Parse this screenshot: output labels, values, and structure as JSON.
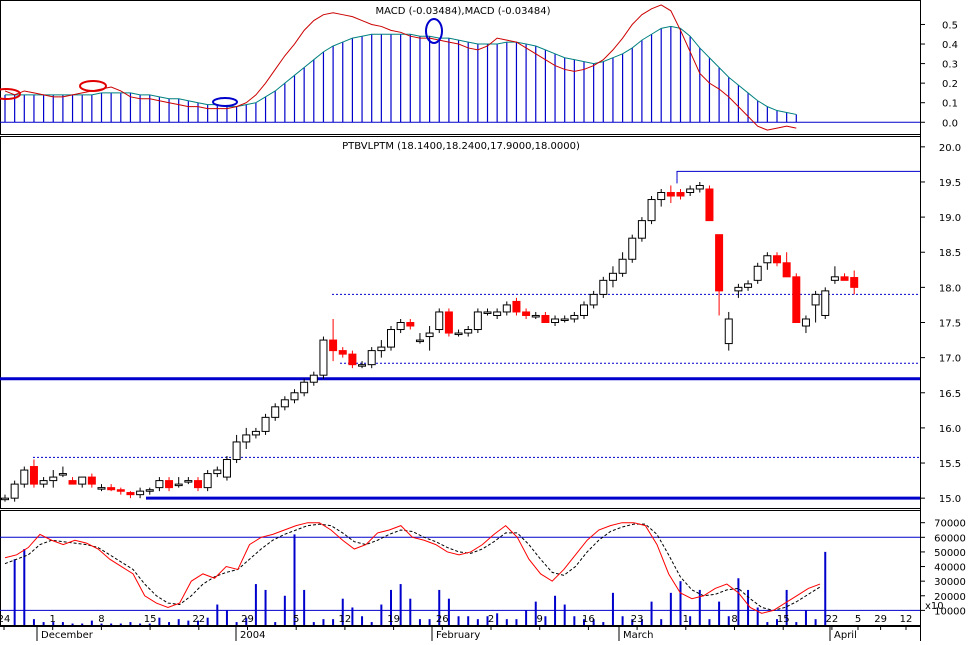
{
  "chart_data": [
    {
      "type": "line",
      "panel": "macd",
      "title": "MACD (-0.03484),MACD (-0.03484)",
      "ylim": [
        -0.06,
        0.62
      ],
      "y_ticks": [
        "0.5",
        "0.4",
        "0.3",
        "0.2",
        "0.1",
        "0.0"
      ],
      "y_tick_values": [
        0.5,
        0.4,
        0.3,
        0.2,
        0.1,
        0.0
      ],
      "colors": {
        "macd": "#cc0000",
        "signal": "#008080",
        "histogram": "#0000cc"
      },
      "macd_line": [
        0.16,
        0.14,
        0.16,
        0.15,
        0.14,
        0.13,
        0.13,
        0.14,
        0.15,
        0.16,
        0.17,
        0.18,
        0.16,
        0.13,
        0.12,
        0.12,
        0.11,
        0.1,
        0.09,
        0.08,
        0.08,
        0.07,
        0.07,
        0.07,
        0.08,
        0.1,
        0.14,
        0.2,
        0.27,
        0.34,
        0.4,
        0.47,
        0.52,
        0.55,
        0.56,
        0.55,
        0.54,
        0.52,
        0.5,
        0.49,
        0.47,
        0.46,
        0.44,
        0.43,
        0.43,
        0.42,
        0.41,
        0.4,
        0.38,
        0.37,
        0.39,
        0.43,
        0.42,
        0.41,
        0.38,
        0.35,
        0.32,
        0.29,
        0.27,
        0.26,
        0.27,
        0.29,
        0.32,
        0.37,
        0.43,
        0.5,
        0.55,
        0.58,
        0.6,
        0.57,
        0.47,
        0.36,
        0.25,
        0.2,
        0.17,
        0.13,
        0.08,
        0.03,
        -0.02,
        -0.04,
        -0.03,
        -0.02,
        -0.03
      ],
      "signal_line": [
        0.14,
        0.14,
        0.14,
        0.14,
        0.14,
        0.14,
        0.14,
        0.14,
        0.14,
        0.14,
        0.15,
        0.15,
        0.15,
        0.15,
        0.14,
        0.14,
        0.13,
        0.12,
        0.12,
        0.11,
        0.1,
        0.09,
        0.09,
        0.08,
        0.08,
        0.09,
        0.1,
        0.13,
        0.16,
        0.2,
        0.24,
        0.28,
        0.32,
        0.36,
        0.39,
        0.41,
        0.43,
        0.44,
        0.45,
        0.45,
        0.45,
        0.45,
        0.45,
        0.44,
        0.44,
        0.43,
        0.43,
        0.42,
        0.41,
        0.4,
        0.4,
        0.4,
        0.41,
        0.41,
        0.4,
        0.39,
        0.37,
        0.35,
        0.33,
        0.32,
        0.31,
        0.3,
        0.31,
        0.33,
        0.35,
        0.38,
        0.42,
        0.45,
        0.48,
        0.49,
        0.48,
        0.44,
        0.38,
        0.33,
        0.28,
        0.23,
        0.19,
        0.15,
        0.11,
        0.08,
        0.06,
        0.05,
        0.04
      ]
    },
    {
      "type": "candlestick",
      "panel": "price",
      "title": "PTBVLPTM (18.1400,18.2400,17.9000,18.0000)",
      "ylim": [
        14.86,
        20.14
      ],
      "y_ticks": [
        "20.0",
        "19.5",
        "19.0",
        "18.5",
        "18.0",
        "17.5",
        "17.0",
        "16.5",
        "16.0",
        "15.5",
        "15.0"
      ],
      "y_tick_values": [
        20.0,
        19.5,
        19.0,
        18.5,
        18.0,
        17.5,
        17.0,
        16.5,
        16.0,
        15.5,
        15.0
      ],
      "up_color": "#ffffff",
      "down_color": "#ff0000",
      "candles": [
        [
          15.0,
          15.05,
          14.95,
          15.0
        ],
        [
          15.0,
          15.25,
          14.95,
          15.2
        ],
        [
          15.2,
          15.45,
          15.15,
          15.4
        ],
        [
          15.45,
          15.55,
          15.15,
          15.2
        ],
        [
          15.2,
          15.3,
          15.15,
          15.25
        ],
        [
          15.25,
          15.4,
          15.15,
          15.3
        ],
        [
          15.35,
          15.45,
          15.3,
          15.35
        ],
        [
          15.25,
          15.3,
          15.2,
          15.2
        ],
        [
          15.2,
          15.3,
          15.15,
          15.3
        ],
        [
          15.3,
          15.35,
          15.15,
          15.2
        ],
        [
          15.15,
          15.2,
          15.1,
          15.15
        ],
        [
          15.15,
          15.2,
          15.1,
          15.12
        ],
        [
          15.12,
          15.15,
          15.05,
          15.1
        ],
        [
          15.08,
          15.1,
          15.0,
          15.05
        ],
        [
          15.05,
          15.15,
          15.0,
          15.1
        ],
        [
          15.1,
          15.15,
          15.05,
          15.12
        ],
        [
          15.15,
          15.3,
          15.1,
          15.25
        ],
        [
          15.25,
          15.3,
          15.1,
          15.15
        ],
        [
          15.2,
          15.3,
          15.15,
          15.2
        ],
        [
          15.25,
          15.3,
          15.2,
          15.25
        ],
        [
          15.25,
          15.3,
          15.1,
          15.15
        ],
        [
          15.15,
          15.4,
          15.1,
          15.35
        ],
        [
          15.35,
          15.45,
          15.3,
          15.4
        ],
        [
          15.3,
          15.6,
          15.25,
          15.55
        ],
        [
          15.55,
          15.9,
          15.5,
          15.8
        ],
        [
          15.8,
          16.0,
          15.7,
          15.9
        ],
        [
          15.9,
          16.0,
          15.85,
          15.95
        ],
        [
          15.95,
          16.2,
          15.9,
          16.15
        ],
        [
          16.15,
          16.35,
          16.1,
          16.3
        ],
        [
          16.3,
          16.45,
          16.25,
          16.4
        ],
        [
          16.4,
          16.55,
          16.35,
          16.5
        ],
        [
          16.5,
          16.7,
          16.45,
          16.65
        ],
        [
          16.65,
          16.8,
          16.6,
          16.75
        ],
        [
          16.75,
          17.3,
          16.7,
          17.25
        ],
        [
          17.25,
          17.55,
          16.95,
          17.1
        ],
        [
          17.1,
          17.15,
          17.0,
          17.05
        ],
        [
          17.05,
          17.1,
          16.85,
          16.9
        ],
        [
          16.9,
          16.95,
          16.85,
          16.9
        ],
        [
          16.9,
          17.15,
          16.85,
          17.1
        ],
        [
          17.1,
          17.25,
          17.0,
          17.15
        ],
        [
          17.15,
          17.45,
          17.1,
          17.4
        ],
        [
          17.4,
          17.55,
          17.35,
          17.5
        ],
        [
          17.5,
          17.55,
          17.4,
          17.45
        ],
        [
          17.25,
          17.35,
          17.2,
          17.25
        ],
        [
          17.3,
          17.45,
          17.1,
          17.35
        ],
        [
          17.4,
          17.7,
          17.35,
          17.65
        ],
        [
          17.65,
          17.7,
          17.3,
          17.35
        ],
        [
          17.35,
          17.4,
          17.3,
          17.35
        ],
        [
          17.35,
          17.45,
          17.3,
          17.4
        ],
        [
          17.4,
          17.7,
          17.35,
          17.65
        ],
        [
          17.65,
          17.7,
          17.6,
          17.65
        ],
        [
          17.6,
          17.7,
          17.55,
          17.65
        ],
        [
          17.65,
          17.8,
          17.6,
          17.75
        ],
        [
          17.8,
          17.85,
          17.6,
          17.65
        ],
        [
          17.65,
          17.7,
          17.55,
          17.6
        ],
        [
          17.6,
          17.65,
          17.55,
          17.6
        ],
        [
          17.6,
          17.65,
          17.5,
          17.5
        ],
        [
          17.5,
          17.6,
          17.45,
          17.55
        ],
        [
          17.55,
          17.6,
          17.5,
          17.55
        ],
        [
          17.55,
          17.65,
          17.5,
          17.6
        ],
        [
          17.6,
          17.8,
          17.55,
          17.75
        ],
        [
          17.75,
          17.95,
          17.7,
          17.9
        ],
        [
          17.9,
          18.15,
          17.85,
          18.1
        ],
        [
          18.1,
          18.3,
          18.0,
          18.2
        ],
        [
          18.2,
          18.5,
          18.15,
          18.4
        ],
        [
          18.4,
          18.75,
          18.35,
          18.7
        ],
        [
          18.7,
          19.0,
          18.65,
          18.95
        ],
        [
          18.95,
          19.3,
          18.9,
          19.25
        ],
        [
          19.25,
          19.4,
          19.15,
          19.35
        ],
        [
          19.35,
          19.45,
          19.2,
          19.3
        ],
        [
          19.35,
          19.4,
          19.25,
          19.3
        ],
        [
          19.35,
          19.45,
          19.3,
          19.4
        ],
        [
          19.4,
          19.5,
          19.35,
          19.45
        ],
        [
          19.4,
          19.45,
          18.95,
          18.95
        ],
        [
          18.75,
          18.75,
          17.6,
          17.95
        ],
        [
          17.2,
          17.65,
          17.1,
          17.55
        ],
        [
          17.95,
          18.05,
          17.85,
          18.0
        ],
        [
          18.0,
          18.1,
          17.95,
          18.05
        ],
        [
          18.1,
          18.35,
          18.05,
          18.3
        ],
        [
          18.35,
          18.5,
          18.25,
          18.45
        ],
        [
          18.45,
          18.5,
          18.3,
          18.35
        ],
        [
          18.35,
          18.5,
          18.15,
          18.15
        ],
        [
          18.15,
          18.2,
          17.5,
          17.5
        ],
        [
          17.45,
          17.6,
          17.35,
          17.55
        ],
        [
          17.75,
          17.95,
          17.5,
          17.9
        ],
        [
          17.6,
          18.0,
          17.55,
          17.95
        ],
        [
          18.1,
          18.3,
          18.05,
          18.15
        ],
        [
          18.15,
          18.2,
          18.1,
          18.1
        ],
        [
          18.14,
          18.24,
          17.9,
          18.0
        ]
      ],
      "reference_lines": {
        "solid_thick": [
          16.7,
          15.0
        ],
        "dotted": [
          17.9,
          15.58,
          16.92
        ],
        "resistance": 19.65
      }
    },
    {
      "type": "line",
      "panel": "volume-stochastic",
      "ylim": [
        0,
        78000
      ],
      "y_ticks": [
        "70000",
        "60000",
        "50000",
        "40000",
        "30000",
        "20000",
        "10000"
      ],
      "y_tick_values": [
        70000,
        60000,
        50000,
        40000,
        30000,
        20000,
        10000
      ],
      "y_multiplier": "x10",
      "x_ticks": [
        "24",
        "1",
        "8",
        "15",
        "22",
        "29",
        "5",
        "12",
        "19",
        "26",
        "2",
        "9",
        "16",
        "23",
        "1",
        "8",
        "15",
        "22",
        "29",
        "5",
        "12"
      ],
      "month_labels": [
        "December",
        "2004",
        "February",
        "March",
        "April"
      ],
      "volume": [
        0,
        45000,
        52000,
        4000,
        2000,
        2000,
        2000,
        1000,
        1000,
        3000,
        1000,
        1000,
        1000,
        2000,
        1000,
        1000,
        5000,
        2000,
        4000,
        3000,
        3000,
        5000,
        14000,
        10000,
        2000,
        5000,
        28000,
        24000,
        2000,
        20000,
        62000,
        24000,
        2000,
        4000,
        4000,
        18000,
        12000,
        6000,
        2000,
        14000,
        24000,
        28000,
        18000,
        4000,
        4000,
        24000,
        18000,
        6000,
        6000,
        4000,
        6000,
        8000,
        4000,
        4000,
        10000,
        16000,
        6000,
        20000,
        14000,
        6000,
        4000,
        4000,
        2000,
        22000,
        6000,
        4000,
        4000,
        16000,
        4000,
        22000,
        30000,
        6000,
        24000,
        4000,
        16000,
        6000,
        32000,
        24000,
        12000,
        2000,
        4000,
        24000,
        2000,
        10000,
        4000,
        50000
      ],
      "stochastic_k": [
        46000,
        48000,
        53000,
        62000,
        58000,
        55000,
        58000,
        56000,
        52000,
        45000,
        40000,
        35000,
        20000,
        15000,
        12000,
        15000,
        30000,
        35000,
        32000,
        40000,
        38000,
        55000,
        60000,
        62000,
        65000,
        68000,
        70000,
        70000,
        65000,
        58000,
        52000,
        55000,
        63000,
        65000,
        68000,
        60000,
        58000,
        55000,
        50000,
        48000,
        50000,
        55000,
        62000,
        68000,
        60000,
        45000,
        35000,
        30000,
        38000,
        48000,
        58000,
        65000,
        68000,
        70000,
        70000,
        68000,
        55000,
        35000,
        22000,
        18000,
        20000,
        25000,
        28000,
        22000,
        12000,
        8000,
        10000,
        15000,
        20000,
        25000,
        28000
      ],
      "stochastic_d": [
        42000,
        45000,
        48000,
        55000,
        58000,
        57000,
        56000,
        55000,
        53000,
        48000,
        43000,
        38000,
        28000,
        20000,
        15000,
        14000,
        20000,
        28000,
        33000,
        36000,
        38000,
        45000,
        52000,
        58000,
        62000,
        65000,
        68000,
        69000,
        68000,
        63000,
        57000,
        55000,
        58000,
        62000,
        65000,
        64000,
        60000,
        57000,
        53000,
        50000,
        49000,
        52000,
        57000,
        63000,
        63000,
        55000,
        45000,
        36000,
        34000,
        40000,
        50000,
        58000,
        64000,
        67000,
        69000,
        69000,
        62000,
        48000,
        33000,
        24000,
        20000,
        21000,
        24000,
        25000,
        18000,
        12000,
        10000,
        12000,
        16000,
        21000,
        26000
      ],
      "reference_levels": [
        60000,
        10000
      ]
    }
  ]
}
